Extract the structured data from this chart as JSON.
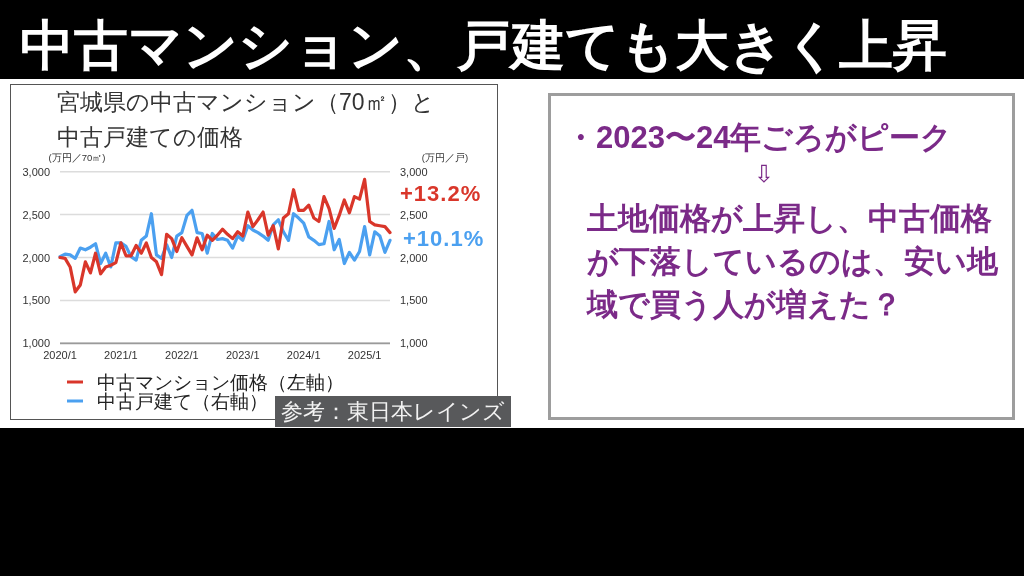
{
  "chart_data": [
    {
      "type": "other",
      "title": "中古マンション、戸建ても大きく上昇"
    },
    {
      "type": "line",
      "title": "宮城県の中古マンション（70㎡）と中古戸建ての価格",
      "ylabel": "(万円／70㎡)",
      "y2label": "(万円／戸)",
      "x": [
        "2020-01",
        "2020-02",
        "2020-03",
        "2020-04",
        "2020-05",
        "2020-06",
        "2020-07",
        "2020-08",
        "2020-09",
        "2020-10",
        "2020-11",
        "2020-12",
        "2021-01",
        "2021-02",
        "2021-03",
        "2021-04",
        "2021-05",
        "2021-06",
        "2021-07",
        "2021-08",
        "2021-09",
        "2021-10",
        "2021-11",
        "2021-12",
        "2022-01",
        "2022-02",
        "2022-03",
        "2022-04",
        "2022-05",
        "2022-06",
        "2022-07",
        "2022-08",
        "2022-09",
        "2022-10",
        "2022-11",
        "2022-12",
        "2023-01",
        "2023-02",
        "2023-03",
        "2023-04",
        "2023-05",
        "2023-06",
        "2023-07",
        "2023-08",
        "2023-09",
        "2023-10",
        "2023-11",
        "2023-12",
        "2024-01",
        "2024-02",
        "2024-03",
        "2024-04",
        "2024-05",
        "2024-06",
        "2024-07",
        "2024-08",
        "2024-09",
        "2024-10",
        "2024-11",
        "2024-12",
        "2025-01",
        "2025-02",
        "2025-03",
        "2025-04",
        "2025-05",
        "2025-06"
      ],
      "series": [
        {
          "name": "中古マンション価格（左軸）",
          "color": "#d9362a",
          "values": [
            2000,
            1990,
            1890,
            1600,
            1680,
            1950,
            1820,
            2050,
            1810,
            1890,
            1910,
            1940,
            2170,
            2020,
            2020,
            2140,
            2050,
            2170,
            2000,
            1950,
            1800,
            2270,
            2220,
            2070,
            2230,
            2130,
            2030,
            2230,
            2090,
            2260,
            2200,
            2260,
            2330,
            2270,
            2220,
            2300,
            2250,
            2530,
            2360,
            2440,
            2530,
            2260,
            2370,
            2100,
            2460,
            2510,
            2790,
            2550,
            2550,
            2610,
            2460,
            2420,
            2710,
            2570,
            2340,
            2490,
            2670,
            2520,
            2710,
            2680,
            2910,
            2420,
            2380,
            2370,
            2360,
            2290
          ]
        },
        {
          "name": "中古戸建て（右軸）",
          "color": "#4ba0f0",
          "axis": "y2",
          "values": [
            2010,
            2040,
            2030,
            1990,
            2110,
            2090,
            2120,
            2160,
            1930,
            2050,
            1890,
            2170,
            2170,
            2130,
            2010,
            1970,
            2200,
            2250,
            2510,
            2030,
            1990,
            2150,
            2000,
            2250,
            2290,
            2490,
            2550,
            2290,
            2280,
            2050,
            2280,
            2210,
            2220,
            2200,
            2110,
            2250,
            2200,
            2370,
            2320,
            2290,
            2250,
            2200,
            2380,
            2440,
            2300,
            2200,
            2510,
            2460,
            2400,
            2240,
            2200,
            2150,
            2160,
            2420,
            2090,
            2210,
            1930,
            2060,
            1970,
            2070,
            2360,
            2030,
            2300,
            2250,
            2060,
            2200
          ]
        }
      ],
      "xlim": [
        "2020-01",
        "2025-06"
      ],
      "xticks": [
        {
          "value": "2020-01",
          "label": "2020/1"
        },
        {
          "value": "2021-01",
          "label": "2021/1"
        },
        {
          "value": "2022-01",
          "label": "2022/1"
        },
        {
          "value": "2023-01",
          "label": "2023/1"
        },
        {
          "value": "2024-01",
          "label": "2024/1"
        },
        {
          "value": "2025-01",
          "label": "2025/1"
        }
      ],
      "ylim": [
        1000,
        3000
      ],
      "yticks": [
        {
          "value": 1000,
          "label": "1,000"
        },
        {
          "value": 1500,
          "label": "1,500"
        },
        {
          "value": 2000,
          "label": "2,000"
        },
        {
          "value": 2500,
          "label": "2,500"
        },
        {
          "value": 3000,
          "label": "3,000"
        }
      ],
      "y2lim": [
        1000,
        3000
      ],
      "y2ticks": [
        {
          "value": 1000,
          "label": "1,000"
        },
        {
          "value": 1500,
          "label": "1,500"
        },
        {
          "value": 2000,
          "label": "2,000"
        },
        {
          "value": 2500,
          "label": "2,500"
        },
        {
          "value": 3000,
          "label": "3,000"
        }
      ],
      "grid": "y",
      "legend": "bottom",
      "annotations": [
        "+13.2%",
        "+10.1%",
        "参考：東日本レインズ"
      ]
    },
    {
      "type": "other",
      "color": "#7b2a88",
      "annotations": [
        "・2023〜24年ごろがピーク",
        "⇩",
        "土地価格が上昇し、中古価格が下落しているのは、安い地域で買う人が増えた？"
      ]
    }
  ]
}
